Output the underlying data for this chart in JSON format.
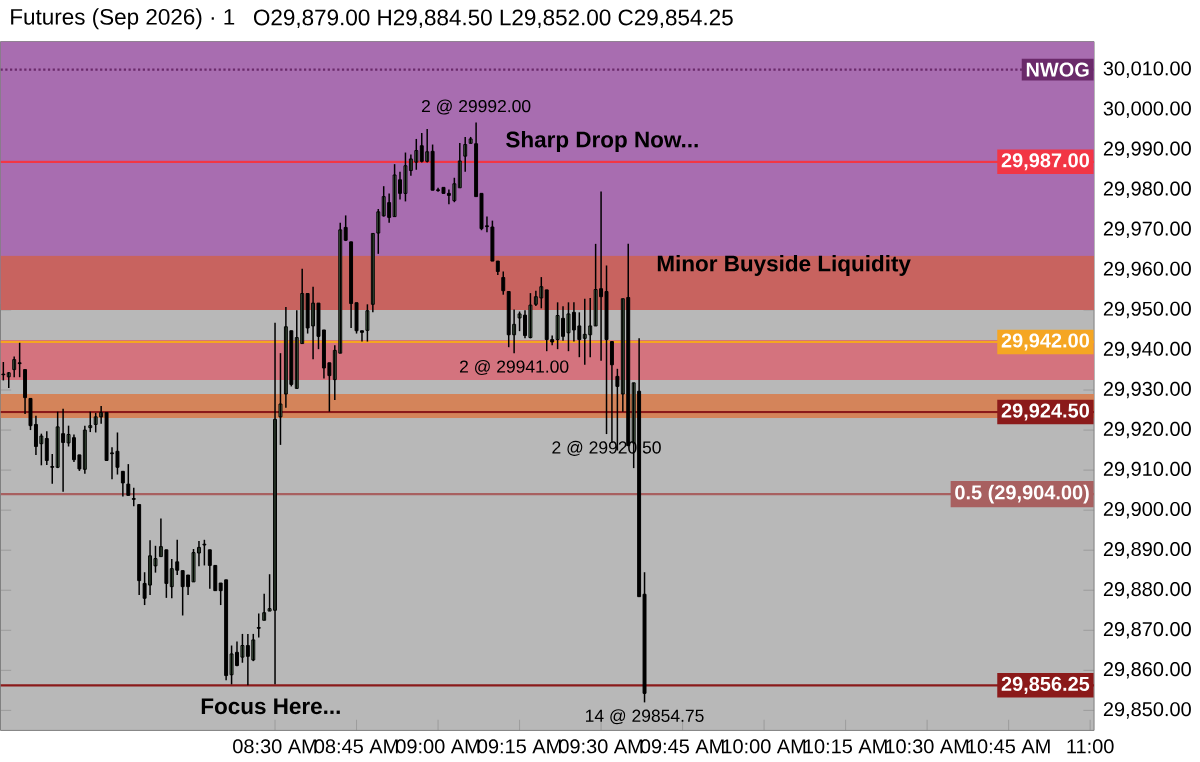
{
  "chart_data": {
    "type": "candlestick",
    "title": "Futures (Sep 2026) · 1",
    "subtitle": "O29,879.00 H29,884.50 L29,852.00 C29,854.25",
    "x": [
      7.6667,
      7.6833,
      7.7,
      7.7167,
      7.7333,
      7.75,
      7.7667,
      7.7833,
      7.8,
      7.8167,
      7.8333,
      7.85,
      7.8667,
      7.8833,
      7.9,
      7.9167,
      7.9333,
      7.95,
      7.9667,
      7.9833,
      8,
      8.0167,
      8.0333,
      8.05,
      8.0667,
      8.0833,
      8.1,
      8.1167,
      8.1333,
      8.15,
      8.1667,
      8.1833,
      8.2,
      8.2167,
      8.2333,
      8.25,
      8.2667,
      8.2833,
      8.3,
      8.3167,
      8.3333,
      8.35,
      8.3667,
      8.3833,
      8.4,
      8.4167,
      8.4333,
      8.45,
      8.4667,
      8.4833,
      8.5,
      8.5167,
      8.5333,
      8.55,
      8.5667,
      8.5833,
      8.6,
      8.6167,
      8.6333,
      8.65,
      8.6667,
      8.6833,
      8.7,
      8.7167,
      8.7333,
      8.75,
      8.7667,
      8.7833,
      8.8,
      8.8167,
      8.8333,
      8.85,
      8.8667,
      8.8833,
      8.9,
      8.9167,
      8.9333,
      8.95,
      8.9667,
      8.9833,
      9,
      9.0167,
      9.0333,
      9.05,
      9.0667,
      9.0833,
      9.1,
      9.1167,
      9.1333,
      9.15,
      9.1667,
      9.1833,
      9.2,
      9.2167,
      9.2333,
      9.25,
      9.2667,
      9.2833,
      9.3,
      9.3167,
      9.3333,
      9.35,
      9.3667,
      9.3833,
      9.4,
      9.4167,
      9.4333,
      9.45,
      9.4667,
      9.4833,
      9.5,
      9.5167,
      9.5333,
      9.55,
      9.5667,
      9.5833,
      9.6,
      9.6167,
      9.6333
    ],
    "ohlc": [
      [
        29934,
        29937,
        29932.4,
        29933.8
      ],
      [
        29933.3,
        29934.5,
        29930.5,
        29934.3
      ],
      [
        29935.1,
        29938.4,
        29933.2,
        29937.6
      ],
      [
        29936.8,
        29941.8,
        29933.2,
        29936.6
      ],
      [
        29935.1,
        29935.1,
        29924,
        29928.1
      ],
      [
        29927.9,
        29927.9,
        29920,
        29921.1
      ],
      [
        29921.4,
        29923.6,
        29913.8,
        29915.9
      ],
      [
        29916.6,
        29919.1,
        29911.2,
        29918.5
      ],
      [
        29917.9,
        29919.7,
        29911.3,
        29912.4
      ],
      [
        29910.9,
        29914,
        29906.6,
        29910.7
      ],
      [
        29910.7,
        29924.6,
        29910.5,
        29920.8
      ],
      [
        29919.1,
        29925.3,
        29904.6,
        29916.9
      ],
      [
        29916.8,
        29921.1,
        29915.9,
        29918.9
      ],
      [
        29918.1,
        29918.9,
        29912,
        29912.6
      ],
      [
        29913.8,
        29913.8,
        29909.8,
        29910.3
      ],
      [
        29910.2,
        29921.1,
        29909.1,
        29920
      ],
      [
        29920.6,
        29924.6,
        29919.5,
        29921.1
      ],
      [
        29921.4,
        29924.3,
        29919.4,
        29923.3
      ],
      [
        29923.3,
        29926,
        29921.6,
        29924.4
      ],
      [
        29924.4,
        29924.4,
        29912.4,
        29912.4
      ],
      [
        29914.3,
        29915.7,
        29907.7,
        29914.1
      ],
      [
        29914.7,
        29919.4,
        29908.9,
        29910.7
      ],
      [
        29909.7,
        29909.7,
        29903.4,
        29906.8
      ],
      [
        29906.5,
        29911.5,
        29903.7,
        29903.7
      ],
      [
        29902.9,
        29905.6,
        29901,
        29902.7
      ],
      [
        29901.4,
        29901.4,
        29878.8,
        29882.4
      ],
      [
        29881.7,
        29884.5,
        29876.3,
        29878
      ],
      [
        29881.3,
        29892.5,
        29878.8,
        29888.6
      ],
      [
        29886.1,
        29891.1,
        29884.4,
        29887.9
      ],
      [
        29888.4,
        29897.9,
        29888.4,
        29890.9
      ],
      [
        29890.1,
        29890.1,
        29878.1,
        29881.7
      ],
      [
        29880.9,
        29887.8,
        29878,
        29885.4
      ],
      [
        29887.1,
        29892.6,
        29883.8,
        29885
      ],
      [
        29884.9,
        29884.9,
        29873.7,
        29880.9
      ],
      [
        29883.8,
        29883.8,
        29878.8,
        29880.9
      ],
      [
        29882.1,
        29890.3,
        29882.1,
        29889.4
      ],
      [
        29889.3,
        29892.3,
        29886,
        29890.7
      ],
      [
        29891.5,
        29892.6,
        29886.2,
        29891.3
      ],
      [
        29890.1,
        29890.1,
        29880.4,
        29886.2
      ],
      [
        29886.2,
        29886.2,
        29879.9,
        29879.9
      ],
      [
        29881.8,
        29881.8,
        29876.3,
        29879.9
      ],
      [
        29882.6,
        29882.6,
        29857.5,
        29858.7
      ],
      [
        29858.9,
        29866.2,
        29856.5,
        29864.1
      ],
      [
        29864.5,
        29867.2,
        29861,
        29861.2
      ],
      [
        29863.3,
        29869.1,
        29861.9,
        29866.2
      ],
      [
        29866.2,
        29869.1,
        29856.25,
        29863.5
      ],
      [
        29862.6,
        29869.1,
        29862.3,
        29867.6
      ],
      [
        29870.7,
        29874.2,
        29868.2,
        29870.5
      ],
      [
        29872.5,
        29879.1,
        29872.5,
        29874.4
      ],
      [
        29874.8,
        29884,
        29874.8,
        29875.4
      ],
      [
        29875,
        29946.8,
        29856.5,
        29922.7
      ],
      [
        29923.3,
        29939.2,
        29916.3,
        29926.5
      ],
      [
        29929,
        29950.7,
        29925.6,
        29945.8
      ],
      [
        29944.8,
        29944.8,
        29930.9,
        29931.4
      ],
      [
        29930.4,
        29949.9,
        29930.4,
        29943.1
      ],
      [
        29941.6,
        29960.3,
        29941.6,
        29954.1
      ],
      [
        29954.1,
        29954.1,
        29944.1,
        29945.5
      ],
      [
        29946,
        29955.8,
        29937.7,
        29951.7
      ],
      [
        29951.7,
        29951.7,
        29940.2,
        29943.4
      ],
      [
        29945,
        29945,
        29932.9,
        29935.5
      ],
      [
        29936.8,
        29936.8,
        29924.6,
        29933.6
      ],
      [
        29932.6,
        29941.2,
        29927.5,
        29939.9
      ],
      [
        29939.2,
        29971.8,
        29939.2,
        29970
      ],
      [
        29970.6,
        29973.6,
        29967.2,
        29967.4
      ],
      [
        29967,
        29967,
        29945.5,
        29951.6
      ],
      [
        29951.8,
        29951.8,
        29944.1,
        29944.8
      ],
      [
        29944.8,
        29944.8,
        29942.1,
        29944.4
      ],
      [
        29944.9,
        29951.4,
        29942.1,
        29949.8
      ],
      [
        29951.4,
        29969.1,
        29949.4,
        29969.1
      ],
      [
        29969.2,
        29975.2,
        29964,
        29974.5
      ],
      [
        29973.5,
        29980.9,
        29973.3,
        29978.3
      ],
      [
        29976.8,
        29979.1,
        29971.8,
        29973.1
      ],
      [
        29973.3,
        29986.4,
        29973.3,
        29983.7
      ],
      [
        29982.5,
        29984.5,
        29977.6,
        29979.1
      ],
      [
        29979.1,
        29989.3,
        29977.1,
        29986
      ],
      [
        29984.8,
        29988.8,
        29983.5,
        29987.7
      ],
      [
        29986.9,
        29992.7,
        29985,
        29989.8
      ],
      [
        29991,
        29994.2,
        29986.8,
        29987.1
      ],
      [
        29987.1,
        29995.2,
        29986.8,
        29989.5
      ],
      [
        29989.6,
        29991.3,
        29979.9,
        29979.9
      ],
      [
        29980,
        29980.5,
        29979.5,
        29979.8
      ],
      [
        29980.6,
        29980.6,
        29979.1,
        29979.1
      ],
      [
        29979.1,
        29980.1,
        29976.4,
        29978.6
      ],
      [
        29977.3,
        29983,
        29976.9,
        29981.5
      ],
      [
        29980.5,
        29991.7,
        29980.5,
        29987.2
      ],
      [
        29988.4,
        29993.2,
        29984.5,
        29991.3
      ],
      [
        29991.6,
        29993.2,
        29991.6,
        29992.7
      ],
      [
        29991.5,
        29996.8,
        29978.3,
        29978.3
      ],
      [
        29979.1,
        29979.1,
        29969.9,
        29970.3
      ],
      [
        29971,
        29973.3,
        29969.4,
        29970.8
      ],
      [
        29970.7,
        29972.3,
        29962.2,
        29962.2
      ],
      [
        29962.2,
        29962.2,
        29958.7,
        29959.6
      ],
      [
        29958.1,
        29959.6,
        29953.8,
        29954.8
      ],
      [
        29954.6,
        29954.6,
        29940.7,
        29943.8
      ],
      [
        29943.8,
        29950.1,
        29939.2,
        29946.4
      ],
      [
        29948,
        29949.6,
        29944.7,
        29949
      ],
      [
        29948.7,
        29949.9,
        29942.9,
        29943.6
      ],
      [
        29943.1,
        29954.2,
        29942.9,
        29951.2
      ],
      [
        29951.4,
        29954.8,
        29951,
        29953.3
      ],
      [
        29953,
        29958.2,
        29950.4,
        29955.8
      ],
      [
        29955,
        29955,
        29939.7,
        29942.6
      ],
      [
        29942.6,
        29943.6,
        29941.2,
        29942
      ],
      [
        29942.6,
        29951.9,
        29940.2,
        29948.6
      ],
      [
        29947.9,
        29950.9,
        29942.3,
        29943.4
      ],
      [
        29944.3,
        29951.9,
        29939.7,
        29949
      ],
      [
        29949.4,
        29951.9,
        29942.1,
        29945
      ],
      [
        29946,
        29949.4,
        29938.2,
        29942.6
      ],
      [
        29942.9,
        29952.8,
        29936.3,
        29943.9
      ],
      [
        29943.8,
        29953,
        29938.2,
        29946
      ],
      [
        29946,
        29966.5,
        29946,
        29955.1
      ],
      [
        29955.3,
        29979.6,
        29937.3,
        29953.3
      ],
      [
        29954.6,
        29961.1,
        29919,
        29942.6
      ],
      [
        29942.1,
        29942.1,
        29916.8,
        29936.3
      ],
      [
        29933.4,
        29935.3,
        29914.9,
        29930.9
      ],
      [
        29929,
        29952.8,
        29924.6,
        29952.8
      ],
      [
        29953.1,
        29966.5,
        29916.1,
        29916.1
      ],
      [
        29916.8,
        29931.8,
        29910.5,
        29931.8
      ],
      [
        29929.7,
        29942.9,
        29878.4,
        29878.4
      ],
      [
        29879,
        29884.5,
        29852,
        29854.25
      ]
    ],
    "colors": [
      "#000000",
      "#7fae7f",
      "#7fae7f",
      "#000000",
      "#000000",
      "#000000",
      "#000000",
      "#7fae7f",
      "#000000",
      "#000000",
      "#7fae7f",
      "#000000",
      "#7fae7f",
      "#000000",
      "#000000",
      "#7fae7f",
      "#7fae7f",
      "#7fae7f",
      "#7fae7f",
      "#000000",
      "#000000",
      "#000000",
      "#000000",
      "#000000",
      "#000000",
      "#000000",
      "#000000",
      "#7fae7f",
      "#7fae7f",
      "#7fae7f",
      "#000000",
      "#7fae7f",
      "#000000",
      "#000000",
      "#000000",
      "#7fae7f",
      "#7fae7f",
      "#000000",
      "#000000",
      "#000000",
      "#000000",
      "#000000",
      "#7fae7f",
      "#000000",
      "#7fae7f",
      "#000000",
      "#7fae7f",
      "#000000",
      "#7fae7f",
      "#7fae7f",
      "#7fae7f",
      "#7fae7f",
      "#7fae7f",
      "#000000",
      "#7fae7f",
      "#7fae7f",
      "#000000",
      "#7fae7f",
      "#000000",
      "#000000",
      "#000000",
      "#7fae7f",
      "#7fae7f",
      "#000000",
      "#000000",
      "#000000",
      "#000000",
      "#7fae7f",
      "#7fae7f",
      "#7fae7f",
      "#7fae7f",
      "#000000",
      "#7fae7f",
      "#000000",
      "#7fae7f",
      "#7fae7f",
      "#7fae7f",
      "#000000",
      "#7fae7f",
      "#000000",
      "#000000",
      "#000000",
      "#000000",
      "#7fae7f",
      "#7fae7f",
      "#7fae7f",
      "#7fae7f",
      "#000000",
      "#000000",
      "#000000",
      "#000000",
      "#000000",
      "#000000",
      "#000000",
      "#7fae7f",
      "#7fae7f",
      "#000000",
      "#7fae7f",
      "#7fae7f",
      "#7fae7f",
      "#000000",
      "#000000",
      "#7fae7f",
      "#000000",
      "#7fae7f",
      "#000000",
      "#000000",
      "#7fae7f",
      "#7fae7f",
      "#7fae7f",
      "#000000",
      "#000000",
      "#000000",
      "#000000",
      "#7fae7f",
      "#000000",
      "#7fae7f",
      "#000000",
      "#000000"
    ],
    "xlim": [
      7.658,
      11.012
    ],
    "xticks": [
      {
        "value": 8.5,
        "label": "08:30 AM"
      },
      {
        "value": 8.75,
        "label": "08:45 AM"
      },
      {
        "value": 9,
        "label": "09:00 AM"
      },
      {
        "value": 9.25,
        "label": "09:15 AM"
      },
      {
        "value": 9.5,
        "label": "09:30 AM"
      },
      {
        "value": 9.75,
        "label": "09:45 AM"
      },
      {
        "value": 10,
        "label": "10:00 AM"
      },
      {
        "value": 10.25,
        "label": "10:15 AM"
      },
      {
        "value": 10.5,
        "label": "10:30 AM"
      },
      {
        "value": 10.75,
        "label": "10:45 AM"
      },
      {
        "value": 11,
        "label": "11:00"
      }
    ],
    "ylim": [
      29845,
      30017
    ],
    "yticks": [
      {
        "value": 29850,
        "label": "29,850.00"
      },
      {
        "value": 29860,
        "label": "29,860.00"
      },
      {
        "value": 29870,
        "label": "29,870.00"
      },
      {
        "value": 29880,
        "label": "29,880.00"
      },
      {
        "value": 29890,
        "label": "29,890.00"
      },
      {
        "value": 29900,
        "label": "29,900.00"
      },
      {
        "value": 29910,
        "label": "29,910.00"
      },
      {
        "value": 29920,
        "label": "29,920.00"
      },
      {
        "value": 29930,
        "label": "29,930.00"
      },
      {
        "value": 29940,
        "label": "29,940.00"
      },
      {
        "value": 29950,
        "label": "29,950.00"
      },
      {
        "value": 29960,
        "label": "29,960.00"
      },
      {
        "value": 29970,
        "label": "29,970.00"
      },
      {
        "value": 29980,
        "label": "29,980.00"
      },
      {
        "value": 29990,
        "label": "29,990.00"
      },
      {
        "value": 30000,
        "label": "30,000.00"
      },
      {
        "value": 30010,
        "label": "30,010.00"
      }
    ],
    "bands": [
      {
        "axis": "y",
        "from": 29951.5,
        "to": 30017,
        "color": "#a86db0"
      },
      {
        "axis": "y",
        "from": 29950,
        "to": 29963.5,
        "color": "#c8635f"
      },
      {
        "axis": "y",
        "from": 29932.5,
        "to": 29942.5,
        "color": "#d4737e"
      },
      {
        "axis": "y",
        "from": 29923,
        "to": 29929,
        "color": "#d4845a"
      }
    ],
    "ref_lines": [
      {
        "axis": "y",
        "value": 30010,
        "label": "NWOG",
        "color": "#6a2a6a",
        "line_style": "dotted"
      },
      {
        "axis": "y",
        "value": 29987,
        "label": "29,987.00",
        "color": "#f23645"
      },
      {
        "axis": "y",
        "value": 29942,
        "label": "29,942.00",
        "color": "#f5a623"
      },
      {
        "axis": "y",
        "value": 29924.5,
        "label": "29,924.50",
        "color": "#8b1a1a"
      },
      {
        "axis": "y",
        "value": 29904,
        "label": "0.5 (29,904.00)",
        "color": "#a86060"
      },
      {
        "axis": "y",
        "value": 29856.25,
        "label": "29,856.25",
        "color": "#8b1a1a"
      }
    ],
    "annotations": [
      "Sharp Drop Now...",
      "Focus Here...",
      "Minor Buyside Liquidity",
      {
        "text": "2 @ 29992.00",
        "x": 9.1167,
        "y": 29996.8
      },
      {
        "text": "2 @ 29941.00",
        "x": 9.2333,
        "y": 29939.2
      },
      {
        "text": "2 @ 29920.50",
        "x": 9.5167,
        "y": 29919
      },
      {
        "text": "14 @ 29854.75",
        "x": 9.6333,
        "y": 29852
      }
    ]
  }
}
